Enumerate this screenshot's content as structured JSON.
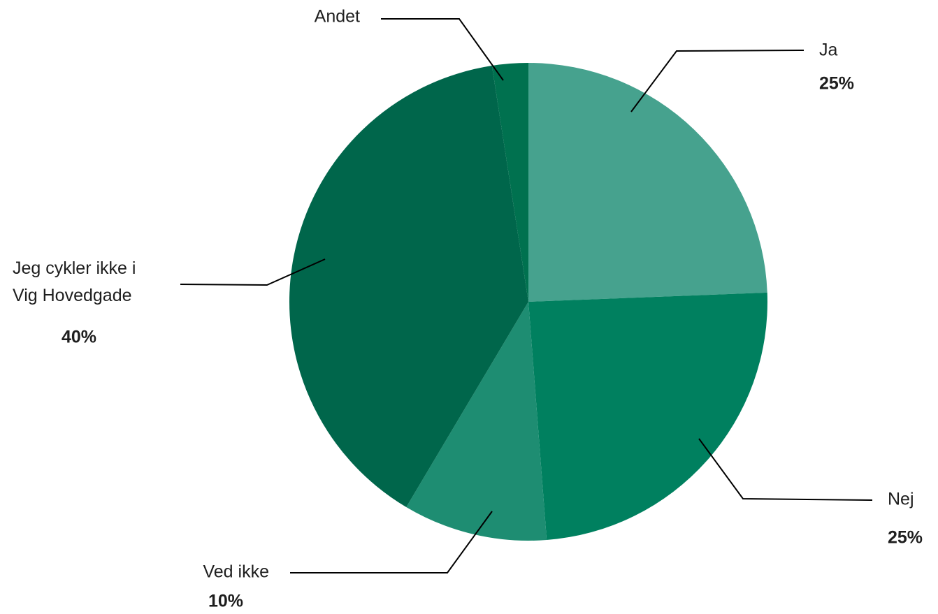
{
  "chart_data": {
    "type": "pie",
    "categories": [
      "Ja",
      "Nej",
      "Ved ikke",
      "Jeg cykler ikke i Vig Hovedgade",
      "Andet"
    ],
    "values": [
      25,
      25,
      10,
      40,
      2.5
    ],
    "value_labels": [
      "25%",
      "25%",
      "10%",
      "40%",
      null
    ],
    "colors": [
      "#46a28e",
      "#00805f",
      "#1e8d72",
      "#00664b",
      "#00714f"
    ]
  }
}
